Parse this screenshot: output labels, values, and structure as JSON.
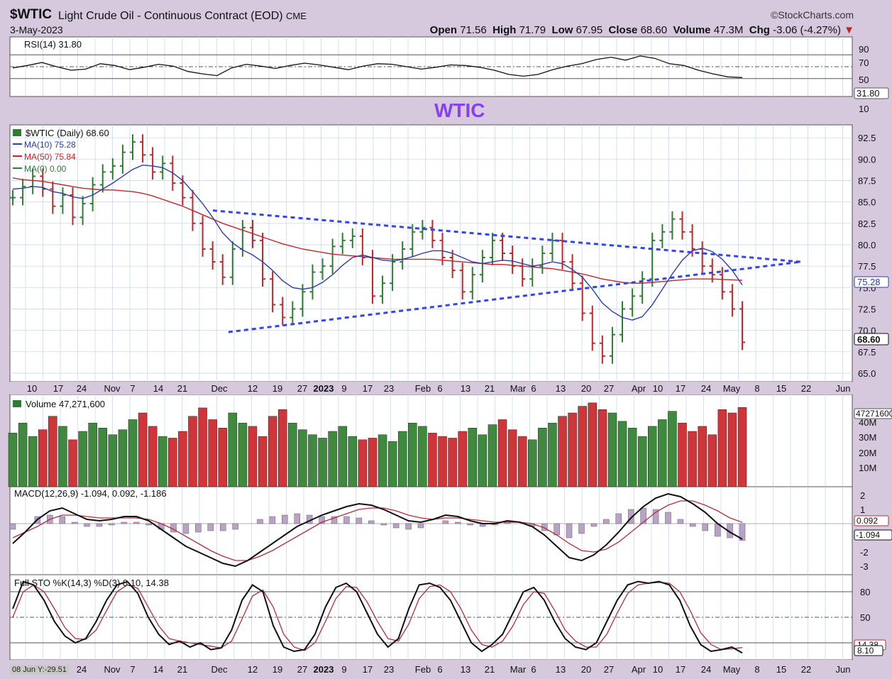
{
  "header": {
    "symbol": "$WTIC",
    "description": "Light Crude Oil - Continuous Contract (EOD)",
    "exchange": "CME",
    "date": "3-May-2023",
    "brand": "©StockCharts.com",
    "open_label": "Open",
    "open": "71.56",
    "high_label": "High",
    "high": "71.79",
    "low_label": "Low",
    "low": "67.95",
    "close_label": "Close",
    "close": "68.60",
    "volume_label": "Volume",
    "volume": "47.3M",
    "chg_label": "Chg",
    "chg": "-3.06 (-4.27%)"
  },
  "annotation": "WTIC",
  "footer_note": "08 Jun Y:-29.51",
  "chart_data": [
    {
      "type": "line",
      "title": "RSI(14) 31.80",
      "yticks": [
        "90",
        "70",
        "50",
        "31.80",
        "10"
      ],
      "ylim": [
        0,
        100
      ],
      "current": 31.8,
      "reference_lines": [
        70,
        50,
        30
      ],
      "values": [
        48,
        52,
        57,
        50,
        44,
        46,
        55,
        52,
        45,
        49,
        54,
        51,
        42,
        38,
        35,
        48,
        54,
        51,
        47,
        52,
        56,
        53,
        49,
        45,
        51,
        55,
        54,
        50,
        46,
        49,
        53,
        52,
        49,
        44,
        37,
        34,
        37,
        45,
        51,
        55,
        62,
        66,
        61,
        68,
        64,
        55,
        52,
        44,
        38,
        33,
        31.8
      ]
    },
    {
      "type": "bar",
      "title": "$WTIC (Daily) 68.60",
      "legend": [
        {
          "name": "MA(10) 75.28",
          "color": "#2a3ea8"
        },
        {
          "name": "MA(50) 75.84",
          "color": "#c0262b"
        },
        {
          "name": "MA(0) 0.00",
          "color": "#2e7d32"
        }
      ],
      "yticks": [
        "92.5",
        "90.0",
        "87.5",
        "85.0",
        "82.5",
        "80.0",
        "77.5",
        "75.0",
        "72.5",
        "70.0",
        "67.5",
        "65.0"
      ],
      "ylim": [
        64,
        94
      ],
      "price_labels": [
        "75.28",
        "68.60"
      ],
      "xticks": [
        "10",
        "17",
        "24",
        "Nov",
        "7",
        "14",
        "21",
        "Dec",
        "12",
        "19",
        "27",
        "2023",
        "9",
        "17",
        "23",
        "Feb",
        "6",
        "13",
        "21",
        "Mar",
        "6",
        "13",
        "20",
        "27",
        "Apr",
        "10",
        "17",
        "24",
        "May",
        "8",
        "15",
        "22",
        "Jun"
      ],
      "close": [
        85.5,
        86.8,
        88.0,
        86.5,
        84.5,
        85.8,
        83.2,
        84.8,
        87.0,
        88.5,
        89.2,
        90.8,
        92.0,
        90.5,
        88.5,
        89.5,
        87.2,
        85.5,
        82.5,
        79.5,
        78.0,
        76.2,
        79.5,
        82.0,
        80.5,
        76.0,
        73.0,
        71.5,
        72.5,
        74.5,
        76.8,
        77.5,
        79.8,
        80.5,
        81.0,
        78.5,
        74.0,
        75.5,
        78.0,
        79.5,
        81.5,
        82.0,
        80.5,
        78.5,
        77.0,
        74.5,
        76.5,
        78.5,
        80.5,
        79.0,
        77.5,
        76.0,
        77.5,
        79.0,
        80.5,
        78.0,
        75.5,
        72.0,
        68.5,
        67.0,
        69.5,
        72.5,
        74.0,
        76.0,
        80.5,
        81.5,
        83.0,
        81.5,
        79.5,
        77.5,
        76.5,
        74.5,
        72.5,
        68.6
      ],
      "ma10": [
        86.5,
        86.6,
        86.8,
        86.7,
        86.2,
        86.0,
        85.6,
        85.4,
        85.8,
        86.5,
        87.2,
        88.0,
        88.8,
        89.3,
        89.2,
        89.0,
        88.4,
        87.5,
        86.2,
        84.8,
        83.2,
        81.4,
        80.2,
        79.4,
        78.8,
        78.0,
        77.0,
        75.8,
        75.0,
        74.8,
        75.0,
        75.6,
        76.5,
        77.6,
        78.5,
        78.8,
        78.5,
        78.2,
        78.1,
        78.3,
        78.6,
        79.0,
        79.3,
        79.3,
        79.0,
        78.5,
        78.0,
        77.8,
        78.0,
        78.2,
        78.1,
        77.8,
        77.5,
        77.7,
        78.0,
        77.8,
        77.1,
        76.2,
        74.8,
        73.2,
        72.2,
        71.5,
        71.2,
        71.6,
        73.0,
        74.8,
        76.6,
        78.2,
        79.3,
        79.6,
        79.2,
        78.3,
        77.0,
        75.3
      ],
      "ma50": [
        87.8,
        87.6,
        87.5,
        87.4,
        87.2,
        87.0,
        86.8,
        86.6,
        86.5,
        86.4,
        86.4,
        86.3,
        86.2,
        86.0,
        85.7,
        85.3,
        84.9,
        84.5,
        84.0,
        83.5,
        83.0,
        82.5,
        82.1,
        81.7,
        81.3,
        80.9,
        80.5,
        80.1,
        79.8,
        79.5,
        79.3,
        79.1,
        78.9,
        78.8,
        78.7,
        78.6,
        78.5,
        78.4,
        78.3,
        78.3,
        78.3,
        78.3,
        78.3,
        78.2,
        78.1,
        78.0,
        77.9,
        77.8,
        77.7,
        77.7,
        77.6,
        77.5,
        77.4,
        77.3,
        77.2,
        77.0,
        76.8,
        76.6,
        76.3,
        76.0,
        75.8,
        75.6,
        75.5,
        75.5,
        75.6,
        75.7,
        75.8,
        75.9,
        76.0,
        76.0,
        76.0,
        75.95,
        75.9,
        75.84
      ],
      "trendlines": {
        "upper": [
          [
            82,
            84.0
          ],
          [
            1128,
            78.0
          ]
        ],
        "lower": [
          [
            322,
            69.8
          ],
          [
            1128,
            78.0
          ]
        ]
      }
    },
    {
      "type": "bar",
      "title": "Volume 47,271,600",
      "yticks": [
        "47271600",
        "40M",
        "30M",
        "20M",
        "10M"
      ],
      "ylim": [
        0,
        55
      ],
      "values": [
        32,
        38,
        30,
        34,
        42,
        36,
        28,
        33,
        38,
        35,
        31,
        34,
        40,
        44,
        36,
        30,
        29,
        33,
        42,
        47,
        40,
        35,
        44,
        38,
        36,
        30,
        42,
        46,
        38,
        34,
        31,
        29,
        33,
        36,
        30,
        28,
        29,
        31,
        27,
        33,
        38,
        36,
        32,
        30,
        29,
        33,
        35,
        31,
        37,
        40,
        34,
        30,
        28,
        35,
        38,
        42,
        44,
        48,
        50,
        46,
        44,
        39,
        35,
        30,
        36,
        40,
        45,
        38,
        33,
        36,
        31,
        46,
        44,
        47.3
      ],
      "colors_by_change": true
    },
    {
      "type": "line",
      "title": "MACD(12,26,9) -1.094, 0.092, -1.186",
      "yticks": [
        "2",
        "1",
        "0.092",
        "-1.094",
        "-2",
        "-3"
      ],
      "ylim": [
        -3.6,
        2.6
      ],
      "macd": [
        -1.4,
        -0.6,
        0.3,
        0.9,
        1.1,
        0.7,
        0.3,
        0.2,
        0.3,
        0.5,
        0.5,
        0.2,
        -0.4,
        -1.0,
        -1.6,
        -2.0,
        -2.4,
        -2.8,
        -3.0,
        -2.6,
        -2.0,
        -1.4,
        -0.8,
        -0.2,
        0.2,
        0.6,
        0.9,
        1.2,
        1.4,
        1.3,
        1.0,
        0.6,
        0.2,
        0.1,
        0.3,
        0.6,
        0.5,
        0.2,
        0.0,
        0.0,
        0.2,
        0.1,
        -0.2,
        -0.8,
        -1.6,
        -2.4,
        -2.6,
        -2.2,
        -1.5,
        -0.6,
        0.4,
        1.2,
        1.8,
        2.1,
        1.9,
        1.4,
        0.8,
        0.0,
        -0.6,
        -1.094
      ],
      "signal": [
        -1.0,
        -0.6,
        -0.2,
        0.3,
        0.6,
        0.6,
        0.5,
        0.4,
        0.4,
        0.4,
        0.4,
        0.3,
        0.0,
        -0.4,
        -0.9,
        -1.4,
        -1.9,
        -2.3,
        -2.6,
        -2.6,
        -2.3,
        -1.9,
        -1.4,
        -0.9,
        -0.4,
        0.1,
        0.4,
        0.7,
        1.0,
        1.1,
        1.1,
        0.9,
        0.6,
        0.4,
        0.3,
        0.4,
        0.4,
        0.3,
        0.2,
        0.1,
        0.1,
        0.1,
        0.0,
        -0.3,
        -0.8,
        -1.4,
        -1.9,
        -2.0,
        -1.8,
        -1.3,
        -0.6,
        0.1,
        0.8,
        1.3,
        1.6,
        1.6,
        1.3,
        0.9,
        0.4,
        0.092
      ]
    },
    {
      "type": "line",
      "title": "Full STO %K(14,3) %D(3) 8.10, 14.38",
      "yticks": [
        "80",
        "50",
        "14.38",
        "8.10"
      ],
      "ylim": [
        0,
        100
      ],
      "k": [
        60,
        92,
        88,
        70,
        45,
        28,
        20,
        25,
        45,
        70,
        88,
        92,
        78,
        50,
        30,
        18,
        22,
        15,
        20,
        12,
        14,
        35,
        70,
        88,
        80,
        40,
        15,
        10,
        12,
        30,
        62,
        85,
        90,
        80,
        55,
        30,
        15,
        25,
        60,
        88,
        90,
        85,
        70,
        45,
        20,
        10,
        18,
        30,
        55,
        80,
        85,
        70,
        45,
        25,
        15,
        12,
        20,
        45,
        70,
        88,
        92,
        90,
        92,
        88,
        70,
        40,
        18,
        10,
        12,
        15,
        8.1
      ],
      "d": [
        50,
        80,
        88,
        80,
        60,
        38,
        25,
        24,
        35,
        58,
        80,
        88,
        84,
        62,
        40,
        25,
        22,
        20,
        18,
        16,
        14,
        22,
        48,
        75,
        82,
        62,
        30,
        15,
        11,
        20,
        45,
        72,
        86,
        85,
        68,
        45,
        25,
        22,
        42,
        72,
        86,
        88,
        80,
        60,
        35,
        18,
        15,
        22,
        40,
        65,
        80,
        78,
        58,
        35,
        22,
        15,
        15,
        30,
        55,
        78,
        88,
        90,
        91,
        90,
        80,
        58,
        32,
        18,
        12,
        13,
        14.38
      ]
    }
  ]
}
